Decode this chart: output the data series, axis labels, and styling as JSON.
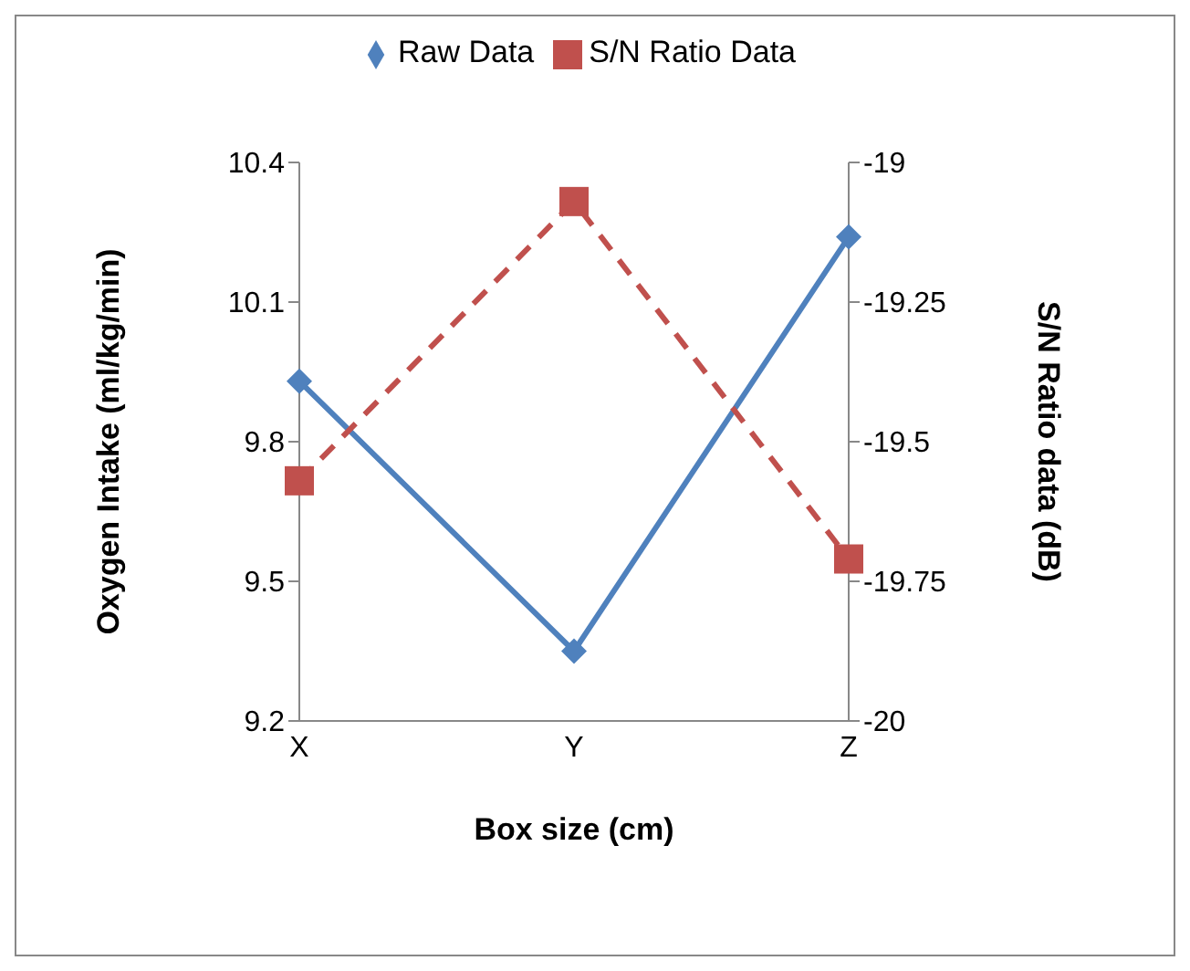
{
  "chart_data": {
    "type": "line",
    "xlabel": "Box size (cm)",
    "ylabel": "Oxygen Intake (ml/kg/min)",
    "y2label": "S/N Ratio data (dB)",
    "categories": [
      "X",
      "Y",
      "Z"
    ],
    "series": [
      {
        "name": "Raw Data",
        "color": "#4f81bd",
        "values": [
          9.93,
          9.35,
          10.24
        ],
        "marker": "diamond",
        "line_style": "solid"
      },
      {
        "name": "S/N Ratio Data",
        "color": "#c0504d",
        "values": [
          -19.57,
          -19.07,
          -19.71
        ],
        "marker": "square",
        "line_style": "dashed",
        "axis": "y2"
      }
    ],
    "ylim": [
      9.2,
      10.4
    ],
    "yticks": [
      9.2,
      9.5,
      9.8,
      10.1,
      10.4
    ],
    "y2lim": [
      -20,
      -19
    ],
    "y2ticks": [
      -20,
      -19.75,
      -19.5,
      -19.25,
      -19
    ],
    "grid": false,
    "legend": "top"
  }
}
